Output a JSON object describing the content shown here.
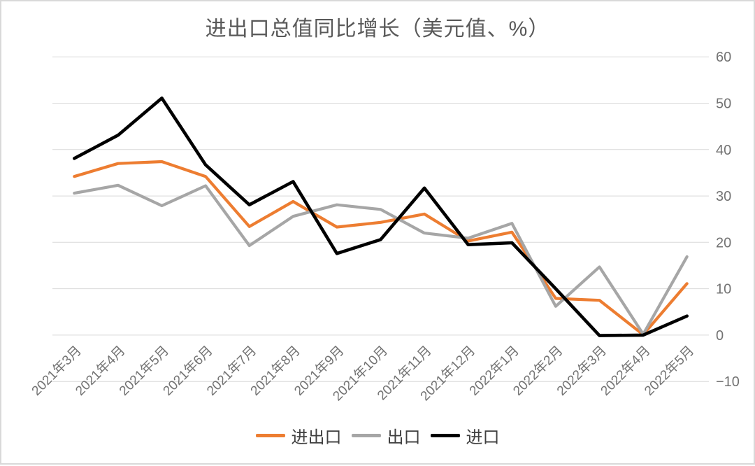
{
  "window": {
    "background": "#ffffff",
    "border_color": "#d9d9d9"
  },
  "chart_data": {
    "type": "line",
    "title": "进出口总值同比增长（美元值、%）",
    "title_color": "#595959",
    "categories": [
      "2021年3月",
      "2021年4月",
      "2021年5月",
      "2021年6月",
      "2021年7月",
      "2021年8月",
      "2021年9月",
      "2021年10月",
      "2021年11月",
      "2021年12月",
      "2022年1月",
      "2022年2月",
      "2022年3月",
      "2022年4月",
      "2022年5月"
    ],
    "series": [
      {
        "name": "进出口",
        "color": "#ED7D31",
        "stroke_width": 4.2,
        "values": [
          34.2,
          37.0,
          37.4,
          34.2,
          23.4,
          28.8,
          23.3,
          24.3,
          26.1,
          20.3,
          22.2,
          7.9,
          7.5,
          0.1,
          11.1
        ]
      },
      {
        "name": "出口",
        "color": "#A6A6A6",
        "stroke_width": 4.2,
        "values": [
          30.6,
          32.3,
          27.9,
          32.2,
          19.3,
          25.6,
          28.1,
          27.1,
          22.0,
          20.9,
          24.1,
          6.2,
          14.7,
          0.2,
          16.9
        ]
      },
      {
        "name": "进口",
        "color": "#000000",
        "stroke_width": 4.6,
        "values": [
          38.1,
          43.1,
          51.1,
          36.7,
          28.1,
          33.1,
          17.6,
          20.6,
          31.7,
          19.5,
          19.9,
          10.0,
          -0.1,
          0.0,
          4.1
        ]
      }
    ],
    "ylim": [
      -10,
      60
    ],
    "yticks": [
      60,
      50,
      40,
      30,
      20,
      10,
      0,
      -10
    ],
    "ytick_labels": [
      "60",
      "50",
      "40",
      "30",
      "20",
      "10",
      "0",
      "−10"
    ],
    "ytick_side": "right",
    "grid": "horizontal",
    "gridline_color": "#D9D9D9",
    "axis_label_color": "#737373",
    "xlabel": "",
    "ylabel": "",
    "legend_position": "bottom",
    "x_label_rotation_deg": -45
  }
}
